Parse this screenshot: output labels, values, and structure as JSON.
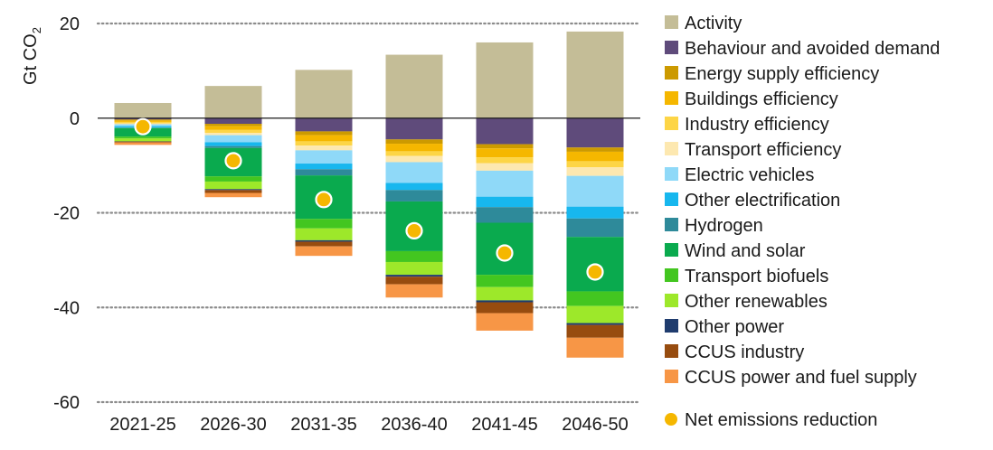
{
  "chart_data": {
    "type": "bar",
    "stacked": true,
    "ylabel": "Gt CO",
    "ylabel_sub": "2",
    "ylim": [
      -60,
      20
    ],
    "yticks": [
      20,
      0,
      -20,
      -40,
      -60
    ],
    "grid": "dotted horizontal lines at non-zero ticks",
    "legend_position": "right",
    "categories": [
      "2021-25",
      "2026-30",
      "2031-35",
      "2036-40",
      "2041-45",
      "2046-50"
    ],
    "series": [
      {
        "name": "Activity",
        "color": "#c4bd97",
        "values": [
          3.2,
          6.8,
          10.2,
          13.4,
          16.0,
          18.3
        ]
      },
      {
        "name": "Behaviour and avoided demand",
        "color": "#5f4b7b",
        "values": [
          -0.3,
          -1.2,
          -2.8,
          -4.5,
          -5.5,
          -6.2
        ]
      },
      {
        "name": "Energy supply efficiency",
        "color": "#cc9a00",
        "values": [
          -0.2,
          -0.5,
          -0.8,
          -0.9,
          -0.9,
          -0.9
        ]
      },
      {
        "name": "Buildings efficiency",
        "color": "#f5b700",
        "values": [
          -0.3,
          -0.8,
          -1.3,
          -1.6,
          -1.9,
          -2.0
        ]
      },
      {
        "name": "Industry efficiency",
        "color": "#fdd546",
        "values": [
          -0.3,
          -0.6,
          -0.9,
          -1.0,
          -1.2,
          -1.3
        ]
      },
      {
        "name": "Transport efficiency",
        "color": "#fde8b0",
        "values": [
          -0.2,
          -0.5,
          -1.0,
          -1.3,
          -1.6,
          -1.8
        ]
      },
      {
        "name": "Electric vehicles",
        "color": "#8fd9f8",
        "values": [
          -0.4,
          -1.5,
          -2.8,
          -4.4,
          -5.5,
          -6.5
        ]
      },
      {
        "name": "Other electrification",
        "color": "#17b7ee",
        "values": [
          -0.3,
          -0.8,
          -1.2,
          -1.5,
          -2.2,
          -2.5
        ]
      },
      {
        "name": "Hydrogen",
        "color": "#2e8a9a",
        "values": [
          -0.1,
          -0.4,
          -1.3,
          -2.4,
          -3.3,
          -3.9
        ]
      },
      {
        "name": "Wind and solar",
        "color": "#0aaa4e",
        "values": [
          -1.8,
          -6.0,
          -9.2,
          -10.5,
          -11.0,
          -11.5
        ]
      },
      {
        "name": "Transport biofuels",
        "color": "#43c620",
        "values": [
          -0.4,
          -1.1,
          -2.0,
          -2.3,
          -2.6,
          -3.1
        ]
      },
      {
        "name": "Other renewables",
        "color": "#9de82a",
        "values": [
          -0.6,
          -1.6,
          -2.5,
          -2.7,
          -2.8,
          -3.6
        ]
      },
      {
        "name": "Other power",
        "color": "#1f3c6e",
        "values": [
          -0.05,
          -0.2,
          -0.3,
          -0.4,
          -0.4,
          -0.4
        ]
      },
      {
        "name": "CCUS industry",
        "color": "#974c0f",
        "values": [
          -0.2,
          -0.6,
          -1.0,
          -1.6,
          -2.3,
          -2.7
        ]
      },
      {
        "name": "CCUS power and fuel supply",
        "color": "#f79646",
        "values": [
          -0.5,
          -0.9,
          -2.0,
          -2.8,
          -3.7,
          -4.2
        ]
      }
    ],
    "net": {
      "name": "Net emissions reduction",
      "color": "#f5b700",
      "values": [
        -1.8,
        -9.0,
        -17.2,
        -23.8,
        -28.5,
        -32.5
      ]
    }
  }
}
